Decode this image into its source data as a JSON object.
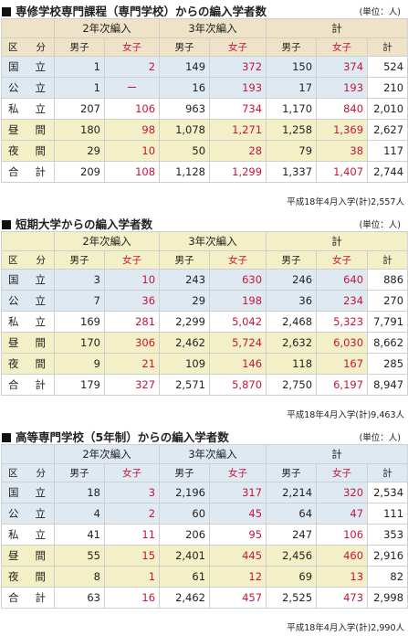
{
  "colors": {
    "tan": "#eee3c7",
    "yellow": "#f3efc6",
    "blue": "#dfe9f2",
    "teal": "#dbe9e7",
    "white": "#ffffff",
    "red": "#c8143c"
  },
  "group_labels": {
    "y2": "2年次編入",
    "y3": "3年次編入",
    "total": "計"
  },
  "sub_labels": {
    "kubun": "区　分",
    "male": "男子",
    "female": "女子",
    "total": "計"
  },
  "unit_label": "(単位：人)",
  "sections": [
    {
      "title": "専修学校専門課程（専門学校）からの編入学者数",
      "footnote": "平成18年4月入学(計)2,557人",
      "rows": [
        {
          "label": "国　立",
          "cells": [
            "1",
            "2",
            "149",
            "372",
            "150",
            "374",
            "524"
          ]
        },
        {
          "label": "公　立",
          "cells": [
            "1",
            "ー",
            "16",
            "193",
            "17",
            "193",
            "210"
          ]
        },
        {
          "label": "私　立",
          "cells": [
            "207",
            "106",
            "963",
            "734",
            "1,170",
            "840",
            "2,010"
          ]
        },
        {
          "label": "昼　間",
          "cells": [
            "180",
            "98",
            "1,078",
            "1,271",
            "1,258",
            "1,369",
            "2,627"
          ]
        },
        {
          "label": "夜　間",
          "cells": [
            "29",
            "10",
            "50",
            "28",
            "79",
            "38",
            "117"
          ]
        },
        {
          "label": "合　計",
          "cells": [
            "209",
            "108",
            "1,128",
            "1,299",
            "1,337",
            "1,407",
            "2,744"
          ]
        }
      ]
    },
    {
      "title": "短期大学からの編入学者数",
      "footnote": "平成18年4月入学(計)9,463人",
      "rows": [
        {
          "label": "国　立",
          "cells": [
            "3",
            "10",
            "243",
            "630",
            "246",
            "640",
            "886"
          ]
        },
        {
          "label": "公　立",
          "cells": [
            "7",
            "36",
            "29",
            "198",
            "36",
            "234",
            "270"
          ]
        },
        {
          "label": "私　立",
          "cells": [
            "169",
            "281",
            "2,299",
            "5,042",
            "2,468",
            "5,323",
            "7,791"
          ]
        },
        {
          "label": "昼　間",
          "cells": [
            "170",
            "306",
            "2,462",
            "5,724",
            "2,632",
            "6,030",
            "8,662"
          ]
        },
        {
          "label": "夜　間",
          "cells": [
            "9",
            "21",
            "109",
            "146",
            "118",
            "167",
            "285"
          ]
        },
        {
          "label": "合　計",
          "cells": [
            "179",
            "327",
            "2,571",
            "5,870",
            "2,750",
            "6,197",
            "8,947"
          ]
        }
      ]
    },
    {
      "title": "高等専門学校（5年制）からの編入学者数",
      "footnote": "平成18年4月入学(計)2,990人",
      "rows": [
        {
          "label": "国　立",
          "cells": [
            "18",
            "3",
            "2,196",
            "317",
            "2,214",
            "320",
            "2,534"
          ]
        },
        {
          "label": "公　立",
          "cells": [
            "4",
            "2",
            "60",
            "45",
            "64",
            "47",
            "111"
          ]
        },
        {
          "label": "私　立",
          "cells": [
            "41",
            "11",
            "206",
            "95",
            "247",
            "106",
            "353"
          ]
        },
        {
          "label": "昼　間",
          "cells": [
            "55",
            "15",
            "2,401",
            "445",
            "2,456",
            "460",
            "2,916"
          ]
        },
        {
          "label": "夜　間",
          "cells": [
            "8",
            "1",
            "61",
            "12",
            "69",
            "13",
            "82"
          ]
        },
        {
          "label": "合　計",
          "cells": [
            "63",
            "16",
            "2,462",
            "457",
            "2,525",
            "473",
            "2,998"
          ]
        }
      ]
    }
  ]
}
